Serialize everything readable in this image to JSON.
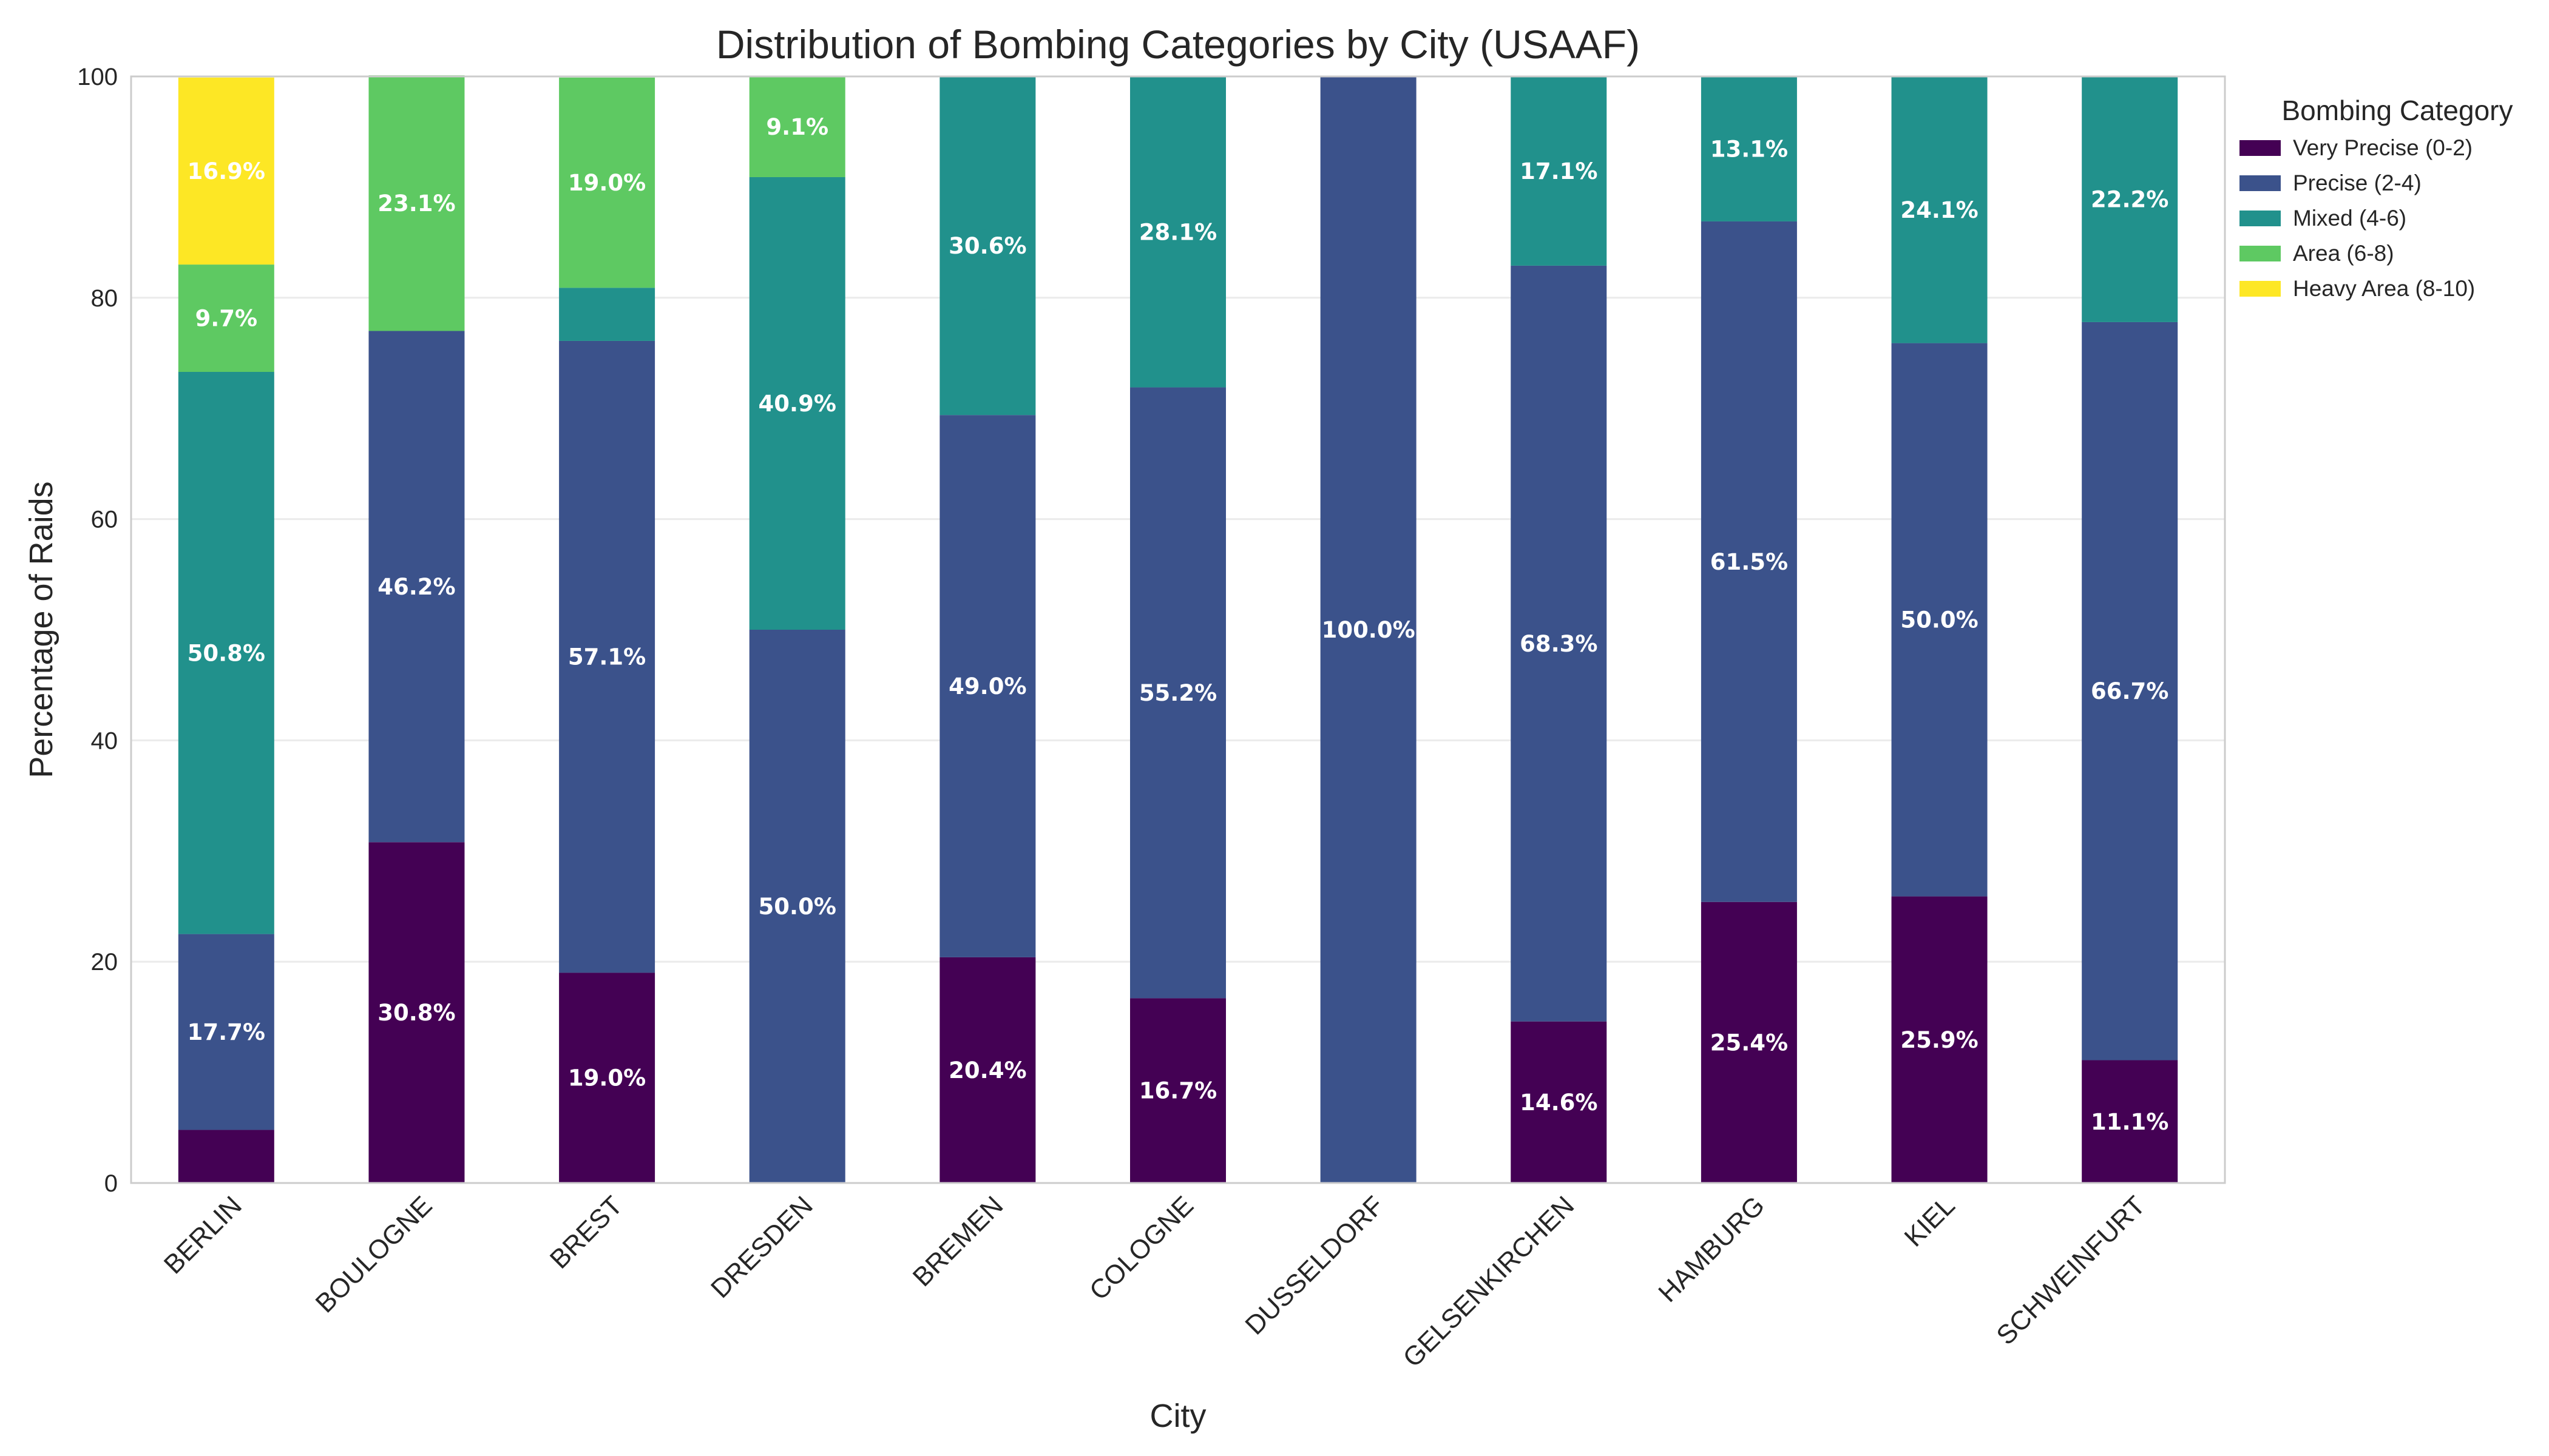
{
  "chart_data": {
    "type": "bar",
    "stacked": true,
    "title": "Distribution of Bombing Categories by City (USAAF)",
    "xlabel": "City",
    "ylabel": "Percentage of Raids",
    "ylim": [
      0,
      100
    ],
    "yticks": [
      0,
      20,
      40,
      60,
      80,
      100
    ],
    "grid": "y",
    "legend_title": "Bombing Category",
    "legend_position": "outside right top",
    "categories": [
      "BERLIN",
      "BOULOGNE",
      "BREST",
      "DRESDEN",
      "BREMEN",
      "COLOGNE",
      "DUSSELDORF",
      "GELSENKIRCHEN",
      "HAMBURG",
      "KIEL",
      "SCHWEINFURT"
    ],
    "series": [
      {
        "name": "Very Precise (0-2)",
        "color": "#440154",
        "values": [
          4.8,
          30.8,
          19.0,
          0,
          20.4,
          16.7,
          0,
          14.6,
          25.4,
          25.9,
          11.1
        ]
      },
      {
        "name": "Precise (2-4)",
        "color": "#3b528b",
        "values": [
          17.7,
          46.2,
          57.1,
          50.0,
          49.0,
          55.2,
          100.0,
          68.3,
          61.5,
          50.0,
          66.7
        ]
      },
      {
        "name": "Mixed (4-6)",
        "color": "#21918c",
        "values": [
          50.8,
          0,
          4.8,
          40.9,
          30.6,
          28.1,
          0,
          17.1,
          13.1,
          24.1,
          22.2
        ]
      },
      {
        "name": "Area (6-8)",
        "color": "#5ec962",
        "values": [
          9.7,
          23.1,
          19.0,
          9.1,
          0,
          0,
          0,
          0,
          0,
          0,
          0
        ]
      },
      {
        "name": "Heavy Area (8-10)",
        "color": "#fde725",
        "values": [
          16.9,
          0,
          0,
          0,
          0,
          0,
          0,
          0,
          0,
          0,
          0
        ]
      }
    ],
    "label_threshold": 5
  }
}
